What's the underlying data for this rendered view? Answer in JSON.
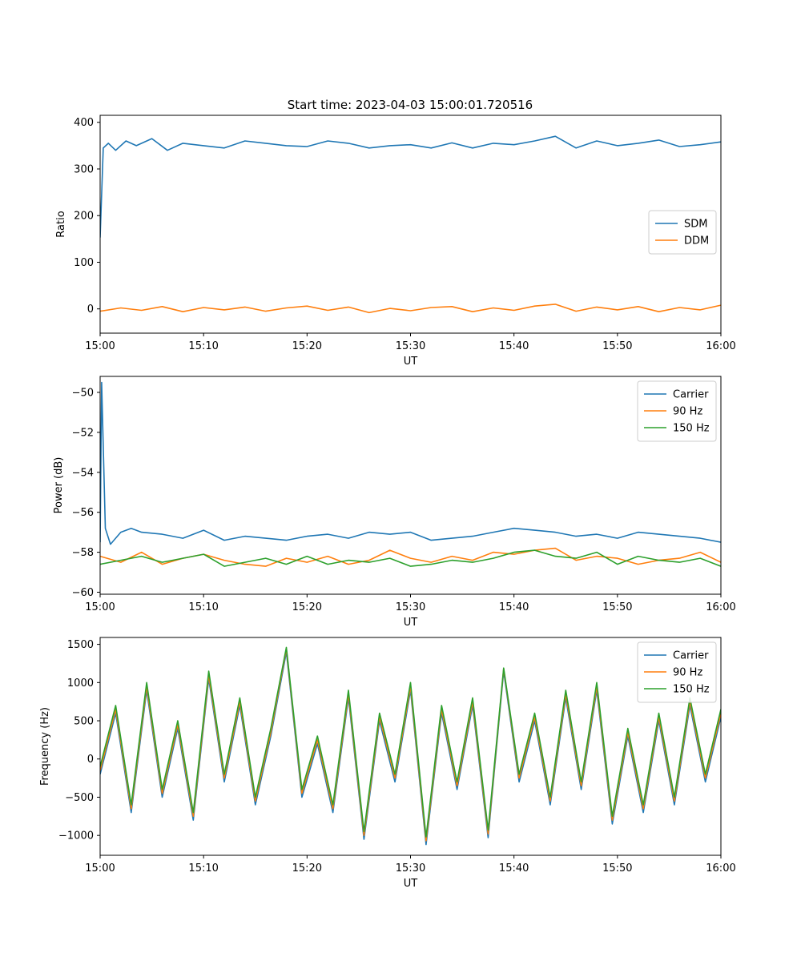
{
  "suptitle": "Start time: 2023-04-03 15:00:01.720516",
  "series_colors": {
    "blue": "#1f77b4",
    "orange": "#ff7f0e",
    "green": "#2ca02c"
  },
  "chart_data": [
    {
      "type": "line",
      "title": "Start time: 2023-04-03 15:00:01.720516",
      "xlabel": "UT",
      "ylabel": "Ratio",
      "xlim": [
        0,
        60
      ],
      "ylim": [
        -52,
        415
      ],
      "xticks": [
        0,
        10,
        20,
        30,
        40,
        50,
        60
      ],
      "xtick_labels": [
        "15:00",
        "15:10",
        "15:20",
        "15:30",
        "15:40",
        "15:50",
        "16:00"
      ],
      "yticks": [
        0,
        100,
        200,
        300,
        400
      ],
      "ytick_labels": [
        "0",
        "100",
        "200",
        "300",
        "400"
      ],
      "grid": false,
      "legend_position": "center-right",
      "series": [
        {
          "name": "SDM",
          "color": "#1f77b4",
          "x": [
            0,
            0.3,
            0.8,
            1.5,
            2.5,
            3.5,
            5,
            6.5,
            8,
            10,
            12,
            14,
            16,
            18,
            20,
            22,
            24,
            26,
            28,
            30,
            32,
            34,
            36,
            38,
            40,
            42,
            44,
            46,
            48,
            50,
            52,
            54,
            56,
            58,
            60
          ],
          "y": [
            153,
            345,
            355,
            340,
            360,
            350,
            365,
            340,
            355,
            350,
            345,
            360,
            355,
            350,
            348,
            360,
            355,
            345,
            350,
            352,
            345,
            356,
            345,
            355,
            352,
            360,
            370,
            345,
            360,
            350,
            355,
            362,
            348,
            352,
            358
          ]
        },
        {
          "name": "DDM",
          "color": "#ff7f0e",
          "x": [
            0,
            2,
            4,
            6,
            8,
            10,
            12,
            14,
            16,
            18,
            20,
            22,
            24,
            26,
            28,
            30,
            32,
            34,
            36,
            38,
            40,
            42,
            44,
            46,
            48,
            50,
            52,
            54,
            56,
            58,
            60
          ],
          "y": [
            -5,
            2,
            -3,
            5,
            -6,
            3,
            -2,
            4,
            -5,
            2,
            6,
            -3,
            4,
            -8,
            1,
            -4,
            3,
            5,
            -6,
            2,
            -3,
            6,
            10,
            -5,
            4,
            -2,
            5,
            -6,
            3,
            -2,
            8
          ]
        }
      ]
    },
    {
      "type": "line",
      "xlabel": "UT",
      "ylabel": "Power (dB)",
      "xlim": [
        0,
        60
      ],
      "ylim": [
        -60.1,
        -49.2
      ],
      "xticks": [
        0,
        10,
        20,
        30,
        40,
        50,
        60
      ],
      "xtick_labels": [
        "15:00",
        "15:10",
        "15:20",
        "15:30",
        "15:40",
        "15:50",
        "16:00"
      ],
      "yticks": [
        -60,
        -58,
        -56,
        -54,
        -52,
        -50
      ],
      "ytick_labels": [
        "−60",
        "−58",
        "−56",
        "−54",
        "−52",
        "−50"
      ],
      "grid": false,
      "legend_position": "top-right",
      "series": [
        {
          "name": "Carrier",
          "color": "#1f77b4",
          "x": [
            0,
            0.15,
            0.5,
            1,
            2,
            3,
            4,
            6,
            8,
            10,
            12,
            14,
            16,
            18,
            20,
            22,
            24,
            26,
            28,
            30,
            32,
            34,
            36,
            38,
            40,
            42,
            44,
            46,
            48,
            50,
            52,
            54,
            56,
            58,
            60
          ],
          "y": [
            -57.5,
            -49.5,
            -56.8,
            -57.6,
            -57.0,
            -56.8,
            -57.0,
            -57.1,
            -57.3,
            -56.9,
            -57.4,
            -57.2,
            -57.3,
            -57.4,
            -57.2,
            -57.1,
            -57.3,
            -57.0,
            -57.1,
            -57.0,
            -57.4,
            -57.3,
            -57.2,
            -57.0,
            -56.8,
            -56.9,
            -57.0,
            -57.2,
            -57.1,
            -57.3,
            -57.0,
            -57.1,
            -57.2,
            -57.3,
            -57.5
          ]
        },
        {
          "name": "90 Hz",
          "color": "#ff7f0e",
          "x": [
            0,
            2,
            4,
            6,
            8,
            10,
            12,
            14,
            16,
            18,
            20,
            22,
            24,
            26,
            28,
            30,
            32,
            34,
            36,
            38,
            40,
            42,
            44,
            46,
            48,
            50,
            52,
            54,
            56,
            58,
            60
          ],
          "y": [
            -58.2,
            -58.5,
            -58.0,
            -58.6,
            -58.3,
            -58.1,
            -58.4,
            -58.6,
            -58.7,
            -58.3,
            -58.5,
            -58.2,
            -58.6,
            -58.4,
            -57.9,
            -58.3,
            -58.5,
            -58.2,
            -58.4,
            -58.0,
            -58.1,
            -57.9,
            -57.8,
            -58.4,
            -58.2,
            -58.3,
            -58.6,
            -58.4,
            -58.3,
            -58.0,
            -58.5
          ]
        },
        {
          "name": "150 Hz",
          "color": "#2ca02c",
          "x": [
            0,
            2,
            4,
            6,
            8,
            10,
            12,
            14,
            16,
            18,
            20,
            22,
            24,
            26,
            28,
            30,
            32,
            34,
            36,
            38,
            40,
            42,
            44,
            46,
            48,
            50,
            52,
            54,
            56,
            58,
            60
          ],
          "y": [
            -58.6,
            -58.4,
            -58.2,
            -58.5,
            -58.3,
            -58.1,
            -58.7,
            -58.5,
            -58.3,
            -58.6,
            -58.2,
            -58.6,
            -58.4,
            -58.5,
            -58.3,
            -58.7,
            -58.6,
            -58.4,
            -58.5,
            -58.3,
            -58.0,
            -57.9,
            -58.2,
            -58.3,
            -58.0,
            -58.6,
            -58.2,
            -58.4,
            -58.5,
            -58.3,
            -58.7
          ]
        }
      ]
    },
    {
      "type": "line",
      "xlabel": "UT",
      "ylabel": "Frequency (Hz)",
      "xlim": [
        0,
        60
      ],
      "ylim": [
        -1260,
        1590
      ],
      "xticks": [
        0,
        10,
        20,
        30,
        40,
        50,
        60
      ],
      "xtick_labels": [
        "15:00",
        "15:10",
        "15:20",
        "15:30",
        "15:40",
        "15:50",
        "16:00"
      ],
      "yticks": [
        -1000,
        -500,
        0,
        500,
        1000,
        1500
      ],
      "ytick_labels": [
        "−1000",
        "−500",
        "0",
        "500",
        "1000",
        "1500"
      ],
      "grid": false,
      "legend_position": "top-right",
      "series": [
        {
          "name": "Carrier",
          "color": "#1f77b4",
          "x": [
            0,
            1.5,
            3,
            4.5,
            6,
            7.5,
            9,
            10.5,
            12,
            13.5,
            15,
            16.5,
            18,
            19.5,
            21,
            22.5,
            24,
            25.5,
            27,
            28.5,
            30,
            31.5,
            33,
            34.5,
            36,
            37.5,
            39,
            40.5,
            42,
            43.5,
            45,
            46.5,
            48,
            49.5,
            51,
            52.5,
            54,
            55.5,
            57,
            58.5,
            60
          ],
          "y": [
            -200,
            600,
            -700,
            900,
            -500,
            400,
            -800,
            1050,
            -300,
            700,
            -600,
            300,
            1400,
            -500,
            200,
            -700,
            800,
            -1050,
            500,
            -300,
            900,
            -1120,
            600,
            -400,
            700,
            -1030,
            1150,
            -300,
            500,
            -600,
            800,
            -400,
            900,
            -850,
            300,
            -700,
            500,
            -600,
            700,
            -300,
            550
          ]
        },
        {
          "name": "90 Hz",
          "color": "#ff7f0e",
          "x": [
            0,
            1.5,
            3,
            4.5,
            6,
            7.5,
            9,
            10.5,
            12,
            13.5,
            15,
            16.5,
            18,
            19.5,
            21,
            22.5,
            24,
            25.5,
            27,
            28.5,
            30,
            31.5,
            33,
            34.5,
            36,
            37.5,
            39,
            40.5,
            42,
            43.5,
            45,
            46.5,
            48,
            49.5,
            51,
            52.5,
            54,
            55.5,
            57,
            58.5,
            60
          ],
          "y": [
            -150,
            650,
            -650,
            950,
            -450,
            450,
            -750,
            1100,
            -250,
            750,
            -550,
            350,
            1440,
            -450,
            250,
            -650,
            850,
            -1000,
            550,
            -250,
            950,
            -1070,
            650,
            -350,
            750,
            -980,
            1180,
            -250,
            550,
            -550,
            850,
            -350,
            950,
            -800,
            350,
            -650,
            550,
            -550,
            750,
            -250,
            600
          ]
        },
        {
          "name": "150 Hz",
          "color": "#2ca02c",
          "x": [
            0,
            1.5,
            3,
            4.5,
            6,
            7.5,
            9,
            10.5,
            12,
            13.5,
            15,
            16.5,
            18,
            19.5,
            21,
            22.5,
            24,
            25.5,
            27,
            28.5,
            30,
            31.5,
            33,
            34.5,
            36,
            37.5,
            39,
            40.5,
            42,
            43.5,
            45,
            46.5,
            48,
            49.5,
            51,
            52.5,
            54,
            55.5,
            57,
            58.5,
            60
          ],
          "y": [
            -100,
            700,
            -600,
            1000,
            -400,
            500,
            -700,
            1150,
            -200,
            800,
            -500,
            400,
            1460,
            -400,
            300,
            -600,
            900,
            -950,
            600,
            -200,
            1000,
            -1020,
            700,
            -300,
            800,
            -930,
            1190,
            -200,
            600,
            -500,
            900,
            -300,
            1000,
            -750,
            400,
            -600,
            600,
            -500,
            800,
            -200,
            650
          ]
        }
      ]
    }
  ]
}
